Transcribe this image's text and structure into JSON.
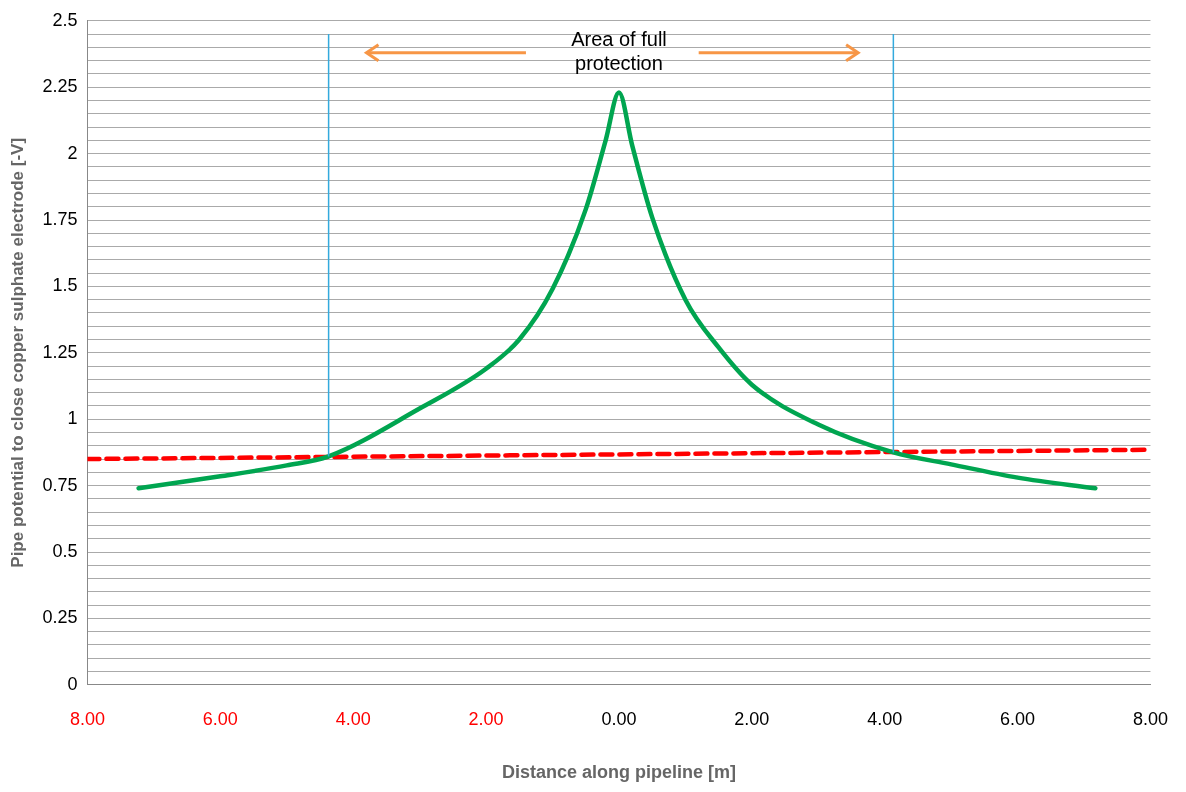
{
  "chart_data": {
    "type": "line",
    "xlabel": "Distance along pipeline [m]",
    "ylabel": "Pipe potential to close copper sulphate electrode [-V]",
    "xlim": [
      -8,
      8
    ],
    "xticks": [
      {
        "value": -8,
        "label": "8.00"
      },
      {
        "value": -6,
        "label": "6.00"
      },
      {
        "value": -4,
        "label": "4.00"
      },
      {
        "value": -2,
        "label": "2.00"
      },
      {
        "value": 0,
        "label": "0.00"
      },
      {
        "value": 2,
        "label": "2.00"
      },
      {
        "value": 4,
        "label": "4.00"
      },
      {
        "value": 6,
        "label": "6.00"
      },
      {
        "value": 8,
        "label": "8.00"
      }
    ],
    "ylim": [
      0,
      2.5
    ],
    "yticks": [
      0,
      {
        "value": 0.05,
        "label": null
      },
      {
        "value": 0.1,
        "label": null
      },
      {
        "value": 0.15,
        "label": null
      },
      {
        "value": 0.2,
        "label": null
      },
      0.25,
      {
        "value": 0.3,
        "label": null
      },
      {
        "value": 0.35,
        "label": null
      },
      {
        "value": 0.4,
        "label": null
      },
      {
        "value": 0.45,
        "label": null
      },
      0.5,
      {
        "value": 0.55,
        "label": null
      },
      {
        "value": 0.6,
        "label": null
      },
      {
        "value": 0.65,
        "label": null
      },
      {
        "value": 0.7,
        "label": null
      },
      0.75,
      {
        "value": 0.8,
        "label": null
      },
      {
        "value": 0.85,
        "label": null
      },
      {
        "value": 0.9,
        "label": null
      },
      {
        "value": 0.95,
        "label": null
      },
      1,
      {
        "value": 1.05,
        "label": null
      },
      {
        "value": 1.1,
        "label": null
      },
      {
        "value": 1.15,
        "label": null
      },
      {
        "value": 1.2,
        "label": null
      },
      1.25,
      {
        "value": 1.3,
        "label": null
      },
      {
        "value": 1.35,
        "label": null
      },
      {
        "value": 1.4,
        "label": null
      },
      {
        "value": 1.45,
        "label": null
      },
      1.5,
      {
        "value": 1.55,
        "label": null
      },
      {
        "value": 1.6,
        "label": null
      },
      {
        "value": 1.65,
        "label": null
      },
      {
        "value": 1.7,
        "label": null
      },
      1.75,
      {
        "value": 1.8,
        "label": null
      },
      {
        "value": 1.85,
        "label": null
      },
      {
        "value": 1.9,
        "label": null
      },
      {
        "value": 1.95,
        "label": null
      },
      2,
      {
        "value": 2.05,
        "label": null
      },
      {
        "value": 2.1,
        "label": null
      },
      {
        "value": 2.15,
        "label": null
      },
      {
        "value": 2.2,
        "label": null
      },
      2.25,
      {
        "value": 2.3,
        "label": null
      },
      {
        "value": 2.35,
        "label": null
      },
      {
        "value": 2.4,
        "label": null
      },
      {
        "value": 2.45,
        "label": null
      },
      2.5
    ],
    "grid": "y",
    "legend": false,
    "marker": "none",
    "series": [
      {
        "color": "#00a550",
        "line_style": "solid",
        "x": [
          -7.23,
          -6,
          -5,
          -4.37,
          -3,
          -2,
          -1.5,
          -1,
          -0.5,
          -0.2,
          0,
          0.2,
          0.5,
          1,
          1.5,
          2,
          3,
          4.13,
          5,
          6,
          7.17
        ],
        "values": [
          0.74,
          0.785,
          0.826,
          0.86,
          1.04,
          1.19,
          1.3,
          1.49,
          1.79,
          2.05,
          2.23,
          2.03,
          1.76,
          1.45,
          1.27,
          1.13,
          0.98,
          0.875,
          0.83,
          0.78,
          0.74
        ]
      },
      {
        "color": "#ff0000",
        "line_style": "dashed",
        "x": [
          -8,
          8
        ],
        "values": [
          0.85,
          0.885
        ]
      }
    ],
    "ref_lines": [
      {
        "axis": "x",
        "value": -4.37,
        "color": "#33aadd"
      },
      {
        "axis": "x",
        "value": 4.13,
        "color": "#33aadd"
      }
    ],
    "annotations": [
      "Area of full protection"
    ]
  }
}
